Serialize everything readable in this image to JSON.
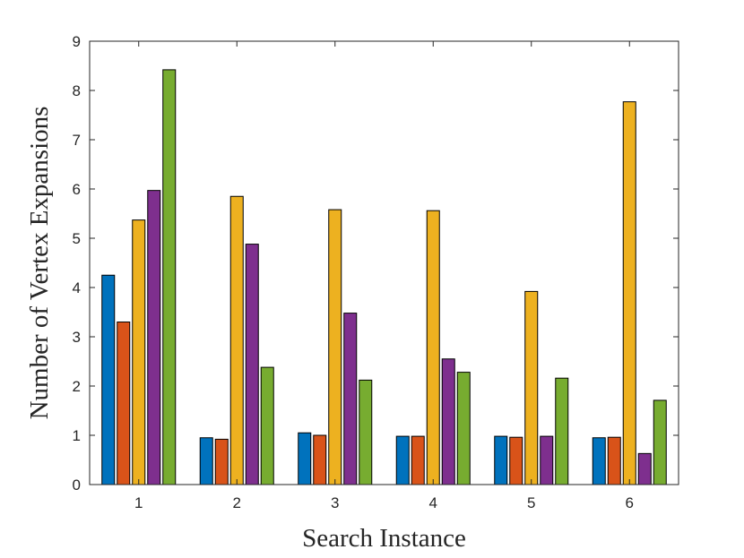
{
  "chart_data": {
    "type": "bar",
    "title": "",
    "xlabel": "Search Instance",
    "ylabel": "Number of Vertex Expansions",
    "categories": [
      "1",
      "2",
      "3",
      "4",
      "5",
      "6"
    ],
    "ylim": [
      0,
      9
    ],
    "yticks": [
      "0",
      "1",
      "2",
      "3",
      "4",
      "5",
      "6",
      "7",
      "8",
      "9"
    ],
    "grid": false,
    "series": [
      {
        "color": "#0072BD",
        "values": [
          4.25,
          0.95,
          1.05,
          0.98,
          0.98,
          0.95
        ]
      },
      {
        "color": "#D95319",
        "values": [
          3.3,
          0.92,
          1.0,
          0.98,
          0.96,
          0.96
        ]
      },
      {
        "color": "#EDB120",
        "values": [
          5.37,
          5.85,
          5.58,
          5.56,
          3.92,
          7.77
        ]
      },
      {
        "color": "#7E2F8E",
        "values": [
          5.97,
          4.88,
          3.48,
          2.55,
          0.98,
          0.63
        ]
      },
      {
        "color": "#77AC30",
        "values": [
          8.42,
          2.38,
          2.12,
          2.28,
          2.16,
          1.71
        ]
      }
    ]
  }
}
